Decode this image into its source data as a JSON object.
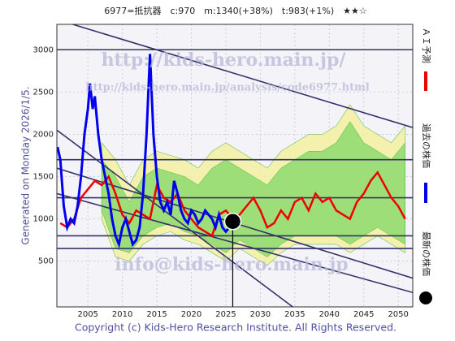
{
  "chart_data": {
    "type": "line",
    "title": "6977=抵抗器　c:970　m:1340(+38%)　t:983(+1%)　★★☆",
    "side_label": "Generated on Monday 2026/1/5.",
    "footer": "Copyright (c) Kids-Hero Research Institute. All Rights Reserved.",
    "watermarks": [
      "http://kids-hero.main.jp/",
      "http://kids-hero.main.jp/analysis/code6977.html",
      "info@kids-hero.main.jp"
    ],
    "xlim": [
      2000.5,
      2052.1
    ],
    "xticks": [
      2005,
      2010,
      2015,
      2020,
      2025,
      2030,
      2035,
      2040,
      2045,
      2050
    ],
    "ylim": [
      -40,
      3300
    ],
    "yticks": [
      500,
      1000,
      1500,
      2000,
      2500,
      3000
    ],
    "grid": true,
    "bands": [
      {
        "color": "#f5f0a0",
        "x": [
          2007,
          2009,
          2011,
          2013,
          2015,
          2017,
          2019,
          2021,
          2023,
          2025,
          2027,
          2029,
          2031,
          2033,
          2035,
          2037,
          2039,
          2041,
          2043,
          2045,
          2047,
          2049,
          2051
        ],
        "low": [
          1000,
          550,
          500,
          700,
          800,
          850,
          750,
          700,
          600,
          500,
          650,
          550,
          450,
          600,
          700,
          700,
          700,
          700,
          600,
          700,
          800,
          700,
          600
        ],
        "high": [
          1900,
          1700,
          1400,
          1700,
          1800,
          1750,
          1700,
          1600,
          1800,
          1900,
          1800,
          1700,
          1600,
          1800,
          1900,
          2000,
          2000,
          2100,
          2350,
          2100,
          2000,
          1900,
          2100
        ]
      },
      {
        "color": "#8fdc70",
        "x": [
          2007,
          2009,
          2011,
          2013,
          2015,
          2017,
          2019,
          2021,
          2023,
          2025,
          2027,
          2029,
          2031,
          2033,
          2035,
          2037,
          2039,
          2041,
          2043,
          2045,
          2047,
          2049,
          2051
        ],
        "low": [
          1100,
          650,
          600,
          800,
          900,
          950,
          850,
          800,
          700,
          600,
          750,
          650,
          550,
          700,
          800,
          800,
          800,
          800,
          700,
          800,
          900,
          800,
          700
        ],
        "high": [
          1700,
          1500,
          1200,
          1500,
          1600,
          1550,
          1500,
          1400,
          1600,
          1700,
          1600,
          1500,
          1400,
          1600,
          1700,
          1800,
          1800,
          1900,
          2150,
          1900,
          1800,
          1700,
          1900
        ]
      }
    ],
    "hlines": [
      3000,
      1700,
      1250,
      800,
      650
    ],
    "trend_lines": [
      {
        "x": [
          2002.8,
          2052.1
        ],
        "values": [
          3300,
          2080
        ]
      },
      {
        "x": [
          2000.5,
          2034.7
        ],
        "values": [
          2050,
          -40
        ]
      },
      {
        "x": [
          2000.5,
          2052.1
        ],
        "values": [
          1600,
          300
        ]
      },
      {
        "x": [
          2000.5,
          2052.1
        ],
        "values": [
          1300,
          130
        ]
      }
    ],
    "series": [
      {
        "name": "ＡＩ予測",
        "color": "#ee0000",
        "x": [
          2001,
          2002,
          2003,
          2004,
          2005,
          2006,
          2007,
          2008,
          2009,
          2010,
          2011,
          2012,
          2013,
          2014,
          2015,
          2016,
          2017,
          2018,
          2019,
          2020,
          2021,
          2022,
          2023,
          2024,
          2025,
          2026,
          2027,
          2028,
          2029,
          2030,
          2031,
          2032,
          2033,
          2034,
          2035,
          2036,
          2037,
          2038,
          2039,
          2040,
          2041,
          2042,
          2043,
          2044,
          2045,
          2046,
          2047,
          2048,
          2049,
          2050,
          2051
        ],
        "values": [
          950,
          900,
          1000,
          1250,
          1350,
          1450,
          1400,
          1500,
          1300,
          1050,
          950,
          1100,
          1050,
          1000,
          1400,
          1250,
          1200,
          1300,
          1100,
          1000,
          900,
          850,
          800,
          1050,
          1100,
          1000,
          1050,
          1150,
          1250,
          1100,
          900,
          950,
          1100,
          1000,
          1200,
          1250,
          1100,
          1300,
          1200,
          1250,
          1100,
          1050,
          1000,
          1200,
          1300,
          1450,
          1550,
          1400,
          1250,
          1150,
          1000
        ]
      },
      {
        "name": "過去の株価",
        "color": "#0000ee",
        "x": [
          2000.6,
          2001,
          2001.5,
          2002,
          2002.5,
          2003,
          2003.5,
          2004,
          2004.5,
          2005,
          2005.3,
          2005.7,
          2006,
          2006.5,
          2007,
          2007.5,
          2008,
          2008.5,
          2009,
          2009.5,
          2010,
          2010.5,
          2011,
          2011.5,
          2012,
          2012.5,
          2013,
          2013.5,
          2014,
          2014.5,
          2015,
          2015.5,
          2016,
          2016.5,
          2017,
          2017.5,
          2018,
          2018.5,
          2019,
          2019.5,
          2020,
          2020.5,
          2021,
          2021.5,
          2022,
          2022.5,
          2023,
          2023.5,
          2024,
          2024.5,
          2025,
          2025.5,
          2025.9
        ],
        "values": [
          1850,
          1700,
          1150,
          900,
          1000,
          950,
          1150,
          1500,
          2000,
          2300,
          2600,
          2300,
          2450,
          2000,
          1700,
          1500,
          1300,
          1000,
          800,
          700,
          900,
          1000,
          850,
          700,
          750,
          900,
          1300,
          2000,
          2950,
          2000,
          1500,
          1200,
          1100,
          1200,
          1050,
          1450,
          1300,
          1100,
          1000,
          950,
          1100,
          1050,
          950,
          1000,
          1100,
          1050,
          1000,
          900,
          1050,
          900,
          850,
          900,
          970
        ]
      }
    ],
    "current": {
      "name": "最新の株価",
      "x": 2026,
      "value": 970
    }
  }
}
